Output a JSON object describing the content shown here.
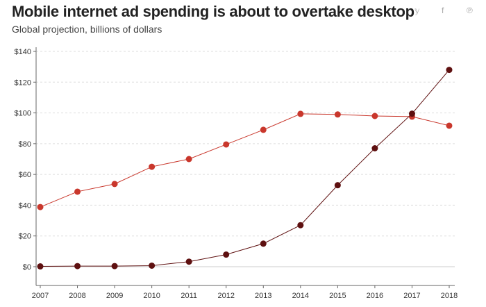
{
  "header": {
    "share_icons": [
      "twitter-icon",
      "facebook-icon",
      "pinterest-icon"
    ],
    "share_glyphs": [
      "𝕪",
      "f",
      "℗"
    ]
  },
  "chart_data": {
    "type": "line",
    "title": "Mobile internet ad spending is about to overtake desktop",
    "subtitle": "Global projection, billions of dollars",
    "x": [
      "2007",
      "2008",
      "2009",
      "2010",
      "2011",
      "2012",
      "2013",
      "2014",
      "2015",
      "2016",
      "2017",
      "2018"
    ],
    "series": [
      {
        "color": "#c9372c",
        "values": [
          38.8,
          48.8,
          53.8,
          65,
          70,
          79.5,
          89,
          99.4,
          99,
          98,
          97.6,
          91.7
        ]
      },
      {
        "color": "#5e1010",
        "values": [
          0.2,
          0.4,
          0.4,
          0.7,
          3.3,
          7.9,
          15,
          27,
          53,
          77,
          99.5,
          128
        ]
      }
    ],
    "yticks": [
      0,
      20,
      40,
      60,
      80,
      100,
      120,
      140
    ],
    "ytick_labels": [
      "$0",
      "$20",
      "$40",
      "$60",
      "$80",
      "$100",
      "$120",
      "$140"
    ],
    "ylim": [
      -12,
      140
    ],
    "grid": true,
    "legend": "none"
  }
}
